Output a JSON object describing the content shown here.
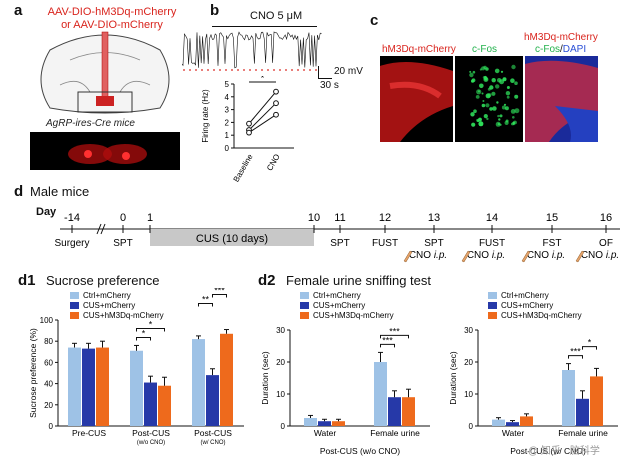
{
  "panel_labels": {
    "a": "a",
    "b": "b",
    "c": "c",
    "d": "d",
    "d1": "d1",
    "d2": "d2"
  },
  "panel_a": {
    "virus_line1": "AAV-DIO-hM3Dq-mCherry",
    "virus_line2": "or AAV-DIO-mCherry",
    "mouse_label": "AgRP-ires-Cre mice"
  },
  "panel_b": {
    "trace_label": "CNO 5 μM",
    "scale_v": "20 mV",
    "scale_t": "30 s",
    "chart_data": {
      "type": "line",
      "title": "",
      "ylabel": "Firing rate (Hz)",
      "categories": [
        "Baseline",
        "CNO"
      ],
      "ylim": [
        0,
        5
      ],
      "yticks": [
        0,
        1,
        2,
        3,
        4,
        5
      ],
      "significance": "*",
      "series": [
        {
          "values": [
            1.9,
            4.4
          ]
        },
        {
          "values": [
            1.4,
            3.5
          ]
        },
        {
          "values": [
            1.2,
            2.6
          ]
        }
      ]
    }
  },
  "panel_c": {
    "label1": "hM3Dq-mCherry",
    "label2": "c-Fos",
    "label3a": "hM3Dq-mCherry",
    "label3b_fos": "c-Fos",
    "label3b_sep": "/",
    "label3b_dapi": "DAPI"
  },
  "panel_d": {
    "title": "Male mice",
    "day_label": "Day",
    "days": [
      "-14",
      "0",
      "1",
      "10",
      "11",
      "12",
      "13",
      "14",
      "15",
      "16"
    ],
    "cus_label": "CUS (10 days)",
    "events": [
      "Surgery",
      "SPT",
      "SPT",
      "FUST",
      "SPT",
      "FUST",
      "FST",
      "OF"
    ],
    "cno_label": "CNO",
    "ip_label": "i.p."
  },
  "panel_d1": {
    "title": "Sucrose preference",
    "chart_data": {
      "type": "bar",
      "ylabel": "Sucrose preference (%)",
      "ylim": [
        0,
        100
      ],
      "yticks": [
        0,
        20,
        40,
        60,
        80,
        100
      ],
      "categories": [
        "Pre-CUS",
        "Post-CUS",
        "Post-CUS"
      ],
      "category_notes": [
        "",
        "(w/o CNO)",
        "(w/ CNO)"
      ],
      "series": [
        {
          "name": "Ctrl+mCherry",
          "color": "#9ec2e6",
          "values": [
            74,
            71,
            82
          ],
          "errors": [
            4,
            5,
            3
          ]
        },
        {
          "name": "CUS+mCherry",
          "color": "#2639a8",
          "values": [
            73,
            41,
            48
          ],
          "errors": [
            5,
            6,
            6
          ]
        },
        {
          "name": "CUS+hM3Dq-mCherry",
          "color": "#ee6a1c",
          "values": [
            74,
            38,
            87
          ],
          "errors": [
            6,
            8,
            4
          ]
        }
      ],
      "significance": [
        {
          "group": 1,
          "pair": [
            0,
            1
          ],
          "label": "*"
        },
        {
          "group": 1,
          "pair": [
            0,
            2
          ],
          "label": "*"
        },
        {
          "group": 2,
          "pair": [
            0,
            1
          ],
          "label": "**"
        },
        {
          "group": 2,
          "pair": [
            1,
            2
          ],
          "label": "***"
        }
      ]
    }
  },
  "panel_d2": {
    "title": "Female urine sniffing test",
    "charts": [
      {
        "type": "bar",
        "ylabel": "Duration (sec)",
        "ylim": [
          0,
          30
        ],
        "yticks": [
          0,
          10,
          20,
          30
        ],
        "categories": [
          "Water",
          "Female urine"
        ],
        "xlabel": "Post-CUS (w/o CNO)",
        "series": [
          {
            "name": "Ctrl+mCherry",
            "color": "#9ec2e6",
            "values": [
              2.5,
              20
            ],
            "errors": [
              0.8,
              3
            ]
          },
          {
            "name": "CUS+mCherry",
            "color": "#2639a8",
            "values": [
              1.5,
              9
            ],
            "errors": [
              0.6,
              2
            ]
          },
          {
            "name": "CUS+hM3Dq-mCherry",
            "color": "#ee6a1c",
            "values": [
              1.5,
              9
            ],
            "errors": [
              0.6,
              2.5
            ]
          }
        ],
        "significance": [
          {
            "group": 1,
            "pair": [
              0,
              1
            ],
            "label": "***"
          },
          {
            "group": 1,
            "pair": [
              0,
              2
            ],
            "label": "***"
          }
        ]
      },
      {
        "type": "bar",
        "ylabel": "Duration (sec)",
        "ylim": [
          0,
          30
        ],
        "yticks": [
          0,
          10,
          20,
          30
        ],
        "categories": [
          "Water",
          "Female urine"
        ],
        "xlabel": "Post-CUS (w/ CNO)",
        "series": [
          {
            "name": "Ctrl+mCherry",
            "color": "#9ec2e6",
            "values": [
              2,
              17.5
            ],
            "errors": [
              0.6,
              2
            ]
          },
          {
            "name": "CUS+mCherry",
            "color": "#2639a8",
            "values": [
              1.2,
              8.5
            ],
            "errors": [
              0.5,
              2.5
            ]
          },
          {
            "name": "CUS+hM3Dq-mCherry",
            "color": "#ee6a1c",
            "values": [
              3,
              15.5
            ],
            "errors": [
              0.8,
              2.5
            ]
          }
        ],
        "significance": [
          {
            "group": 1,
            "pair": [
              0,
              1
            ],
            "label": "***"
          },
          {
            "group": 1,
            "pair": [
              1,
              2
            ],
            "label": "*"
          }
        ]
      }
    ]
  },
  "watermark": "@ 知乎 · 脑科学"
}
